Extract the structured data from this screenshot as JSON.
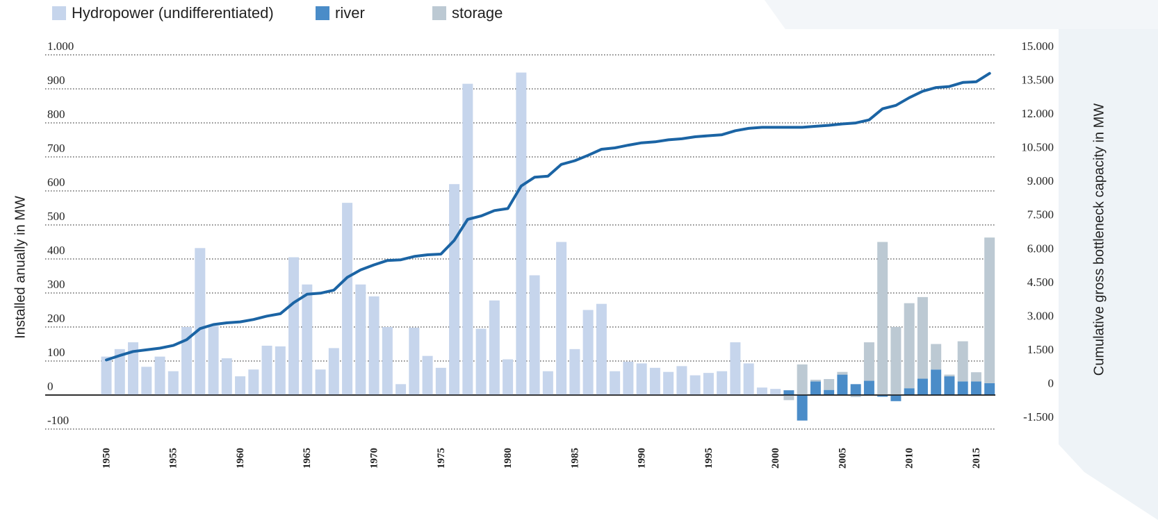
{
  "chart_data": {
    "type": "bar",
    "stacked": true,
    "y_label": "Installed anually in MW",
    "y2_label": "Cumulative gross bottleneck capacity in MW",
    "legend": "top-left",
    "x": [
      1950,
      1951,
      1952,
      1953,
      1954,
      1955,
      1956,
      1957,
      1958,
      1959,
      1960,
      1961,
      1962,
      1963,
      1964,
      1965,
      1966,
      1967,
      1968,
      1969,
      1970,
      1971,
      1972,
      1973,
      1974,
      1975,
      1976,
      1977,
      1978,
      1979,
      1980,
      1981,
      1982,
      1983,
      1984,
      1985,
      1986,
      1987,
      1988,
      1989,
      1990,
      1991,
      1992,
      1993,
      1994,
      1995,
      1996,
      1997,
      1998,
      1999,
      2000,
      2001,
      2002,
      2003,
      2004,
      2005,
      2006,
      2007,
      2008,
      2009,
      2010,
      2011,
      2012,
      2013,
      2014,
      2015,
      2016
    ],
    "xlim": [
      1949.5,
      2016.5
    ],
    "xticks": [
      1950,
      1955,
      1960,
      1965,
      1970,
      1975,
      1980,
      1985,
      1990,
      1995,
      2000,
      2005,
      2010,
      2015
    ],
    "ylim": [
      -100,
      1000
    ],
    "yticks": [
      -100,
      0,
      100,
      200,
      300,
      400,
      500,
      600,
      700,
      800,
      900,
      {
        "value": 1000,
        "label": "1.000"
      }
    ],
    "y2lim": [
      -1650,
      15000
    ],
    "y2ticks": [
      {
        "value": -1500,
        "label": "-1.500"
      },
      0,
      {
        "value": 1500,
        "label": "1.500"
      },
      {
        "value": 3000,
        "label": "3.000"
      },
      {
        "value": 4500,
        "label": "4.500"
      },
      {
        "value": 6000,
        "label": "6.000"
      },
      {
        "value": 7500,
        "label": "7.500"
      },
      {
        "value": 9000,
        "label": "9.000"
      },
      {
        "value": 10500,
        "label": "10.500"
      },
      {
        "value": 12000,
        "label": "12.000"
      },
      {
        "value": 13500,
        "label": "13.500"
      },
      {
        "value": 15000,
        "label": "15.000"
      }
    ],
    "grid": true,
    "series": [
      {
        "name": "Hydropower (undifferentiated)",
        "color": "#c6d5ec",
        "values": [
          113,
          135,
          155,
          83,
          113,
          70,
          200,
          432,
          203,
          108,
          55,
          75,
          145,
          143,
          405,
          325,
          75,
          138,
          565,
          325,
          290,
          200,
          32,
          198,
          115,
          80,
          620,
          915,
          195,
          278,
          105,
          948,
          352,
          70,
          450,
          135,
          250,
          268,
          70,
          98,
          93,
          80,
          68,
          85,
          58,
          65,
          70,
          155,
          93,
          22,
          18,
          null,
          null,
          null,
          null,
          null,
          null,
          null,
          null,
          null,
          null,
          null,
          null,
          null,
          null,
          null,
          null
        ]
      },
      {
        "name": "river",
        "color": "#4a8cc8",
        "values": [
          null,
          null,
          null,
          null,
          null,
          null,
          null,
          null,
          null,
          null,
          null,
          null,
          null,
          null,
          null,
          null,
          null,
          null,
          null,
          null,
          null,
          null,
          null,
          null,
          null,
          null,
          null,
          null,
          null,
          null,
          null,
          null,
          null,
          null,
          null,
          null,
          null,
          null,
          null,
          null,
          null,
          null,
          null,
          null,
          null,
          null,
          null,
          null,
          null,
          null,
          null,
          14,
          -75,
          40,
          15,
          60,
          32,
          42,
          -5,
          -18,
          20,
          48,
          75,
          55,
          40,
          40,
          35
        ]
      },
      {
        "name": "storage",
        "color": "#bcc9d3",
        "values": [
          null,
          null,
          null,
          null,
          null,
          null,
          null,
          null,
          null,
          null,
          null,
          null,
          null,
          null,
          null,
          null,
          null,
          null,
          null,
          null,
          null,
          null,
          null,
          null,
          null,
          null,
          null,
          null,
          null,
          null,
          null,
          null,
          null,
          null,
          null,
          null,
          null,
          null,
          null,
          null,
          null,
          null,
          null,
          null,
          null,
          null,
          null,
          null,
          null,
          null,
          null,
          -15,
          90,
          5,
          32,
          8,
          -6,
          113,
          450,
          200,
          250,
          240,
          75,
          5,
          118,
          27,
          428
        ]
      },
      {
        "type": "line",
        "axis": "y2",
        "color": "#1b64a4",
        "values": [
          1425,
          1620,
          1800,
          1875,
          1950,
          2070,
          2325,
          2820,
          3000,
          3075,
          3120,
          3225,
          3375,
          3480,
          3975,
          4350,
          4395,
          4530,
          5100,
          5430,
          5655,
          5850,
          5880,
          6030,
          6105,
          6135,
          6750,
          7680,
          7830,
          8070,
          8160,
          9165,
          9555,
          9600,
          10125,
          10290,
          10530,
          10800,
          10860,
          10980,
          11085,
          11130,
          11220,
          11265,
          11355,
          11400,
          11445,
          11625,
          11730,
          11775,
          11775,
          11775,
          11775,
          11820,
          11865,
          11925,
          11970,
          12105,
          12600,
          12750,
          13095,
          13380,
          13545,
          13590,
          13770,
          13800,
          14175
        ]
      }
    ]
  }
}
